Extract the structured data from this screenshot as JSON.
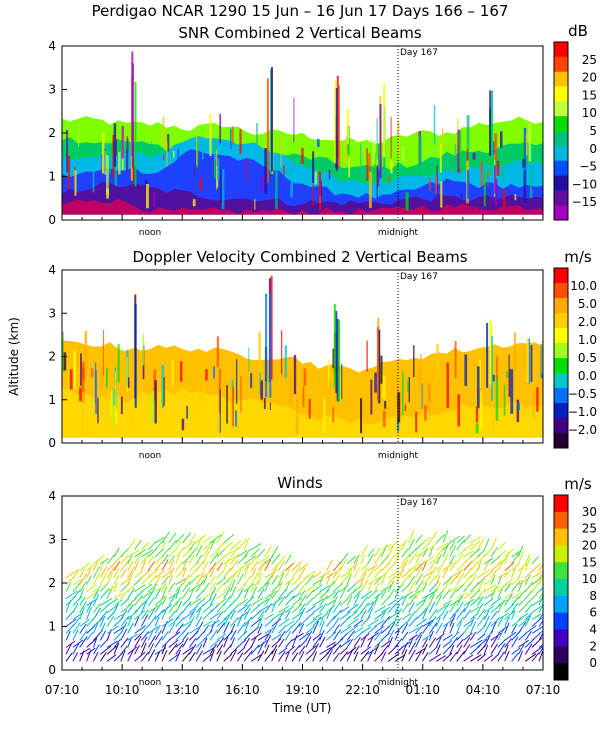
{
  "header": {
    "title": "Perdigao NCAR 1290  15 Jun – 16 Jun 17 Days 166 – 167"
  },
  "chart_data": [
    {
      "type": "heatmap",
      "title": "SNR Combined 2 Vertical Beams",
      "ylim": [
        0,
        4
      ],
      "yticks": [
        "0",
        "1",
        "2",
        "3",
        "4"
      ],
      "xlabel": "",
      "ylabel": "",
      "annotations": {
        "noon": "noon",
        "midnight": "midnight",
        "day": "Day 167"
      },
      "colorbar": {
        "unit": "dB",
        "labels": [
          "25",
          "20",
          "15",
          "10",
          "5",
          "0",
          "−5",
          "−10",
          "−15"
        ],
        "colors": [
          "#ff0000",
          "#ff4400",
          "#ffc000",
          "#ffff00",
          "#c0ff40",
          "#00e000",
          "#00c080",
          "#00b8d8",
          "#0050ff",
          "#2010a0",
          "#6010a0",
          "#a000c0"
        ]
      },
      "layers": [
        {
          "top": [
            2.3,
            2.3,
            2.2,
            2.2,
            2.1,
            2.2,
            2.0,
            2.0,
            1.9,
            1.8,
            1.8,
            2.0,
            2.0,
            2.2,
            2.3,
            2.3
          ],
          "color": "#7fff00"
        },
        {
          "top": [
            1.9,
            1.8,
            1.8,
            1.7,
            1.6,
            1.6,
            1.5,
            1.5,
            1.4,
            1.2,
            1.2,
            1.3,
            1.5,
            1.6,
            1.7,
            1.7
          ],
          "color": "#00cc66"
        },
        {
          "top": [
            1.5,
            1.4,
            1.5,
            1.5,
            1.9,
            1.9,
            1.7,
            1.4,
            1.1,
            0.9,
            0.9,
            1.0,
            1.1,
            1.2,
            1.3,
            1.3
          ],
          "color": "#00b8e8"
        },
        {
          "top": [
            1.0,
            1.1,
            1.2,
            1.1,
            1.6,
            1.5,
            1.3,
            1.0,
            0.7,
            0.6,
            0.5,
            0.7,
            0.9,
            0.8,
            0.8,
            0.7
          ],
          "color": "#2040ff"
        },
        {
          "top": [
            0.6,
            0.8,
            0.8,
            0.7,
            0.6,
            0.5,
            0.5,
            0.4,
            0.4,
            0.4,
            0.4,
            0.5,
            0.5,
            0.5,
            0.5,
            0.5
          ],
          "color": "#5010a0"
        },
        {
          "top": [
            0.35,
            0.5,
            0.4,
            0.2,
            0.2,
            0.2,
            0.2,
            0.2,
            0.2,
            0.2,
            0.2,
            0.3,
            0.3,
            0.3,
            0.3,
            0.3
          ],
          "color": "#c00060"
        }
      ]
    },
    {
      "type": "heatmap",
      "title": "Doppler Velocity Combined 2 Vertical Beams",
      "ylim": [
        0,
        4
      ],
      "yticks": [
        "0",
        "1",
        "2",
        "3",
        "4"
      ],
      "xlabel": "",
      "ylabel": "Altitude (km)",
      "annotations": {
        "noon": "noon",
        "midnight": "midnight",
        "day": "Day 167"
      },
      "colorbar": {
        "unit": "m/s",
        "labels": [
          "10.0",
          "5.0",
          "2.0",
          "1.0",
          "0.5",
          "0.0",
          "−0.5",
          "−1.0",
          "−2.0"
        ],
        "colors": [
          "#ff0000",
          "#ff5000",
          "#ffaa00",
          "#ffd000",
          "#ffff00",
          "#a0ff20",
          "#00dd00",
          "#00c8c8",
          "#0070ff",
          "#0020c0",
          "#400080",
          "#200030"
        ]
      },
      "layers": [
        {
          "top": [
            2.3,
            2.3,
            2.2,
            2.2,
            2.2,
            2.1,
            2.0,
            2.0,
            1.8,
            1.7,
            1.8,
            2.0,
            2.1,
            2.2,
            2.3,
            2.3
          ],
          "color": "#ffc000"
        },
        {
          "top": [
            1.2,
            1.1,
            1.0,
            1.2,
            1.2,
            1.0,
            1.0,
            0.8,
            0.6,
            0.5,
            0.5,
            0.6,
            0.8,
            0.9,
            0.9,
            0.8
          ],
          "color": "#ffd800"
        }
      ]
    },
    {
      "type": "scatter",
      "title": "Winds",
      "ylim": [
        0,
        4
      ],
      "yticks": [
        "0",
        "1",
        "2",
        "3",
        "4"
      ],
      "xlabel": "Time (UT)",
      "ylabel": "",
      "xticks": [
        "07:10",
        "10:10",
        "13:10",
        "16:10",
        "19:10",
        "22:10",
        "01:10",
        "04:10",
        "07:10"
      ],
      "annotations": {
        "noon": "noon",
        "midnight": "midnight",
        "day": "Day 167"
      },
      "colorbar": {
        "unit": "m/s",
        "labels": [
          "30",
          "25",
          "20",
          "15",
          "10",
          "8",
          "6",
          "4",
          "2",
          "0"
        ],
        "colors": [
          "#ff0000",
          "#ff6000",
          "#ffc000",
          "#c8f000",
          "#40e040",
          "#00d0a0",
          "#00a0ff",
          "#0040ff",
          "#4000c0",
          "#300060",
          "#000000"
        ]
      }
    }
  ]
}
